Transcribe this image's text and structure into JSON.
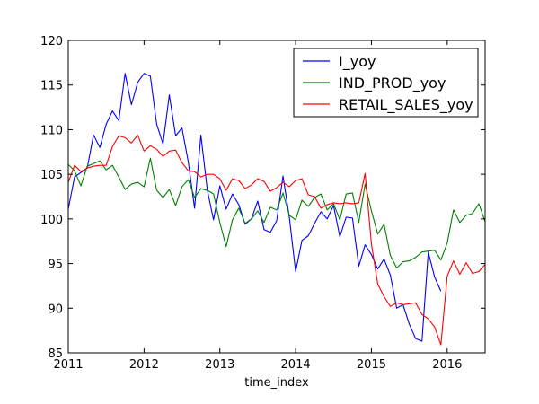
{
  "chart_data": {
    "type": "line",
    "title": "",
    "xlabel": "time_index",
    "ylabel": "",
    "xlim": [
      "2011-01",
      "2016-07"
    ],
    "ylim": [
      85,
      120
    ],
    "grid": false,
    "legend_position": "top-right",
    "x_ticks": [
      {
        "value": "2011-01",
        "label": "2011"
      },
      {
        "value": "2012-01",
        "label": "2012"
      },
      {
        "value": "2013-01",
        "label": "2013"
      },
      {
        "value": "2014-01",
        "label": "2014"
      },
      {
        "value": "2015-01",
        "label": "2015"
      },
      {
        "value": "2016-01",
        "label": "2016"
      }
    ],
    "y_ticks": [
      85,
      90,
      95,
      100,
      105,
      110,
      115,
      120
    ],
    "x": [
      "2011-01",
      "2011-02",
      "2011-03",
      "2011-04",
      "2011-05",
      "2011-06",
      "2011-07",
      "2011-08",
      "2011-09",
      "2011-10",
      "2011-11",
      "2011-12",
      "2012-01",
      "2012-02",
      "2012-03",
      "2012-04",
      "2012-05",
      "2012-06",
      "2012-07",
      "2012-08",
      "2012-09",
      "2012-10",
      "2012-11",
      "2012-12",
      "2013-01",
      "2013-02",
      "2013-03",
      "2013-04",
      "2013-05",
      "2013-06",
      "2013-07",
      "2013-08",
      "2013-09",
      "2013-10",
      "2013-11",
      "2013-12",
      "2014-01",
      "2014-02",
      "2014-03",
      "2014-04",
      "2014-05",
      "2014-06",
      "2014-07",
      "2014-08",
      "2014-09",
      "2014-10",
      "2014-11",
      "2014-12",
      "2015-01",
      "2015-02",
      "2015-03",
      "2015-04",
      "2015-05",
      "2015-06",
      "2015-07",
      "2015-08",
      "2015-09",
      "2015-10",
      "2015-11",
      "2015-12",
      "2016-01",
      "2016-02",
      "2016-03",
      "2016-04",
      "2016-05",
      "2016-06",
      "2016-07"
    ],
    "series": [
      {
        "name": "I_yoy",
        "color": "#0000ff",
        "values": [
          101.1,
          104.7,
          105.2,
          105.7,
          109.4,
          108.0,
          110.6,
          112.1,
          111.0,
          116.3,
          112.8,
          115.3,
          116.3,
          116.0,
          110.6,
          108.4,
          113.9,
          109.3,
          110.2,
          106.4,
          101.2,
          109.4,
          103.3,
          99.9,
          103.7,
          101.1,
          102.8,
          101.6,
          99.4,
          100.0,
          102.0,
          98.8,
          98.5,
          99.8,
          104.8,
          100.2,
          94.1,
          97.6,
          98.1,
          99.5,
          100.8,
          100.0,
          101.5,
          98.0,
          100.2,
          100.1,
          94.7,
          97.1,
          96.0,
          94.4,
          95.5,
          93.7,
          90.0,
          90.4,
          88.2,
          86.6,
          86.3,
          96.3,
          93.5,
          91.9,
          null,
          null,
          null,
          null,
          null,
          null,
          null
        ]
      },
      {
        "name": "IND_PROD_yoy",
        "color": "#008000",
        "values": [
          106.1,
          105.4,
          103.7,
          105.9,
          106.2,
          106.5,
          105.5,
          106.0,
          104.7,
          103.3,
          103.9,
          104.1,
          103.6,
          106.8,
          103.2,
          102.4,
          103.3,
          101.5,
          103.6,
          104.4,
          102.4,
          103.4,
          103.2,
          102.8,
          99.6,
          96.9,
          99.9,
          101.2,
          99.5,
          100.0,
          100.9,
          99.6,
          101.3,
          101.0,
          102.9,
          100.4,
          99.9,
          102.1,
          101.4,
          102.4,
          102.8,
          101.0,
          101.7,
          99.9,
          102.8,
          102.9,
          99.6,
          103.9,
          100.9,
          98.3,
          99.4,
          95.9,
          94.5,
          95.2,
          95.3,
          95.7,
          96.3,
          96.4,
          96.5,
          95.4,
          97.3,
          101.0,
          99.6,
          100.4,
          100.6,
          101.7,
          99.7
        ]
      },
      {
        "name": "RETAIL_SALES_yoy",
        "color": "#ff0000",
        "values": [
          104.1,
          106.0,
          105.3,
          105.7,
          105.9,
          106.0,
          106.0,
          108.1,
          109.3,
          109.1,
          108.5,
          109.4,
          107.6,
          108.2,
          107.8,
          107.0,
          107.6,
          107.7,
          106.3,
          105.4,
          105.3,
          104.7,
          105.0,
          105.0,
          104.5,
          103.2,
          104.5,
          104.3,
          103.4,
          103.8,
          104.5,
          104.2,
          103.1,
          103.5,
          104.1,
          103.6,
          104.3,
          104.5,
          102.7,
          102.5,
          101.2,
          101.6,
          101.8,
          101.7,
          101.8,
          101.7,
          101.8,
          105.1,
          97.2,
          92.7,
          91.3,
          90.2,
          90.6,
          90.4,
          90.5,
          90.6,
          89.3,
          88.8,
          87.9,
          85.9,
          93.6,
          95.3,
          93.8,
          95.1,
          93.9,
          94.1,
          94.9
        ]
      }
    ]
  }
}
